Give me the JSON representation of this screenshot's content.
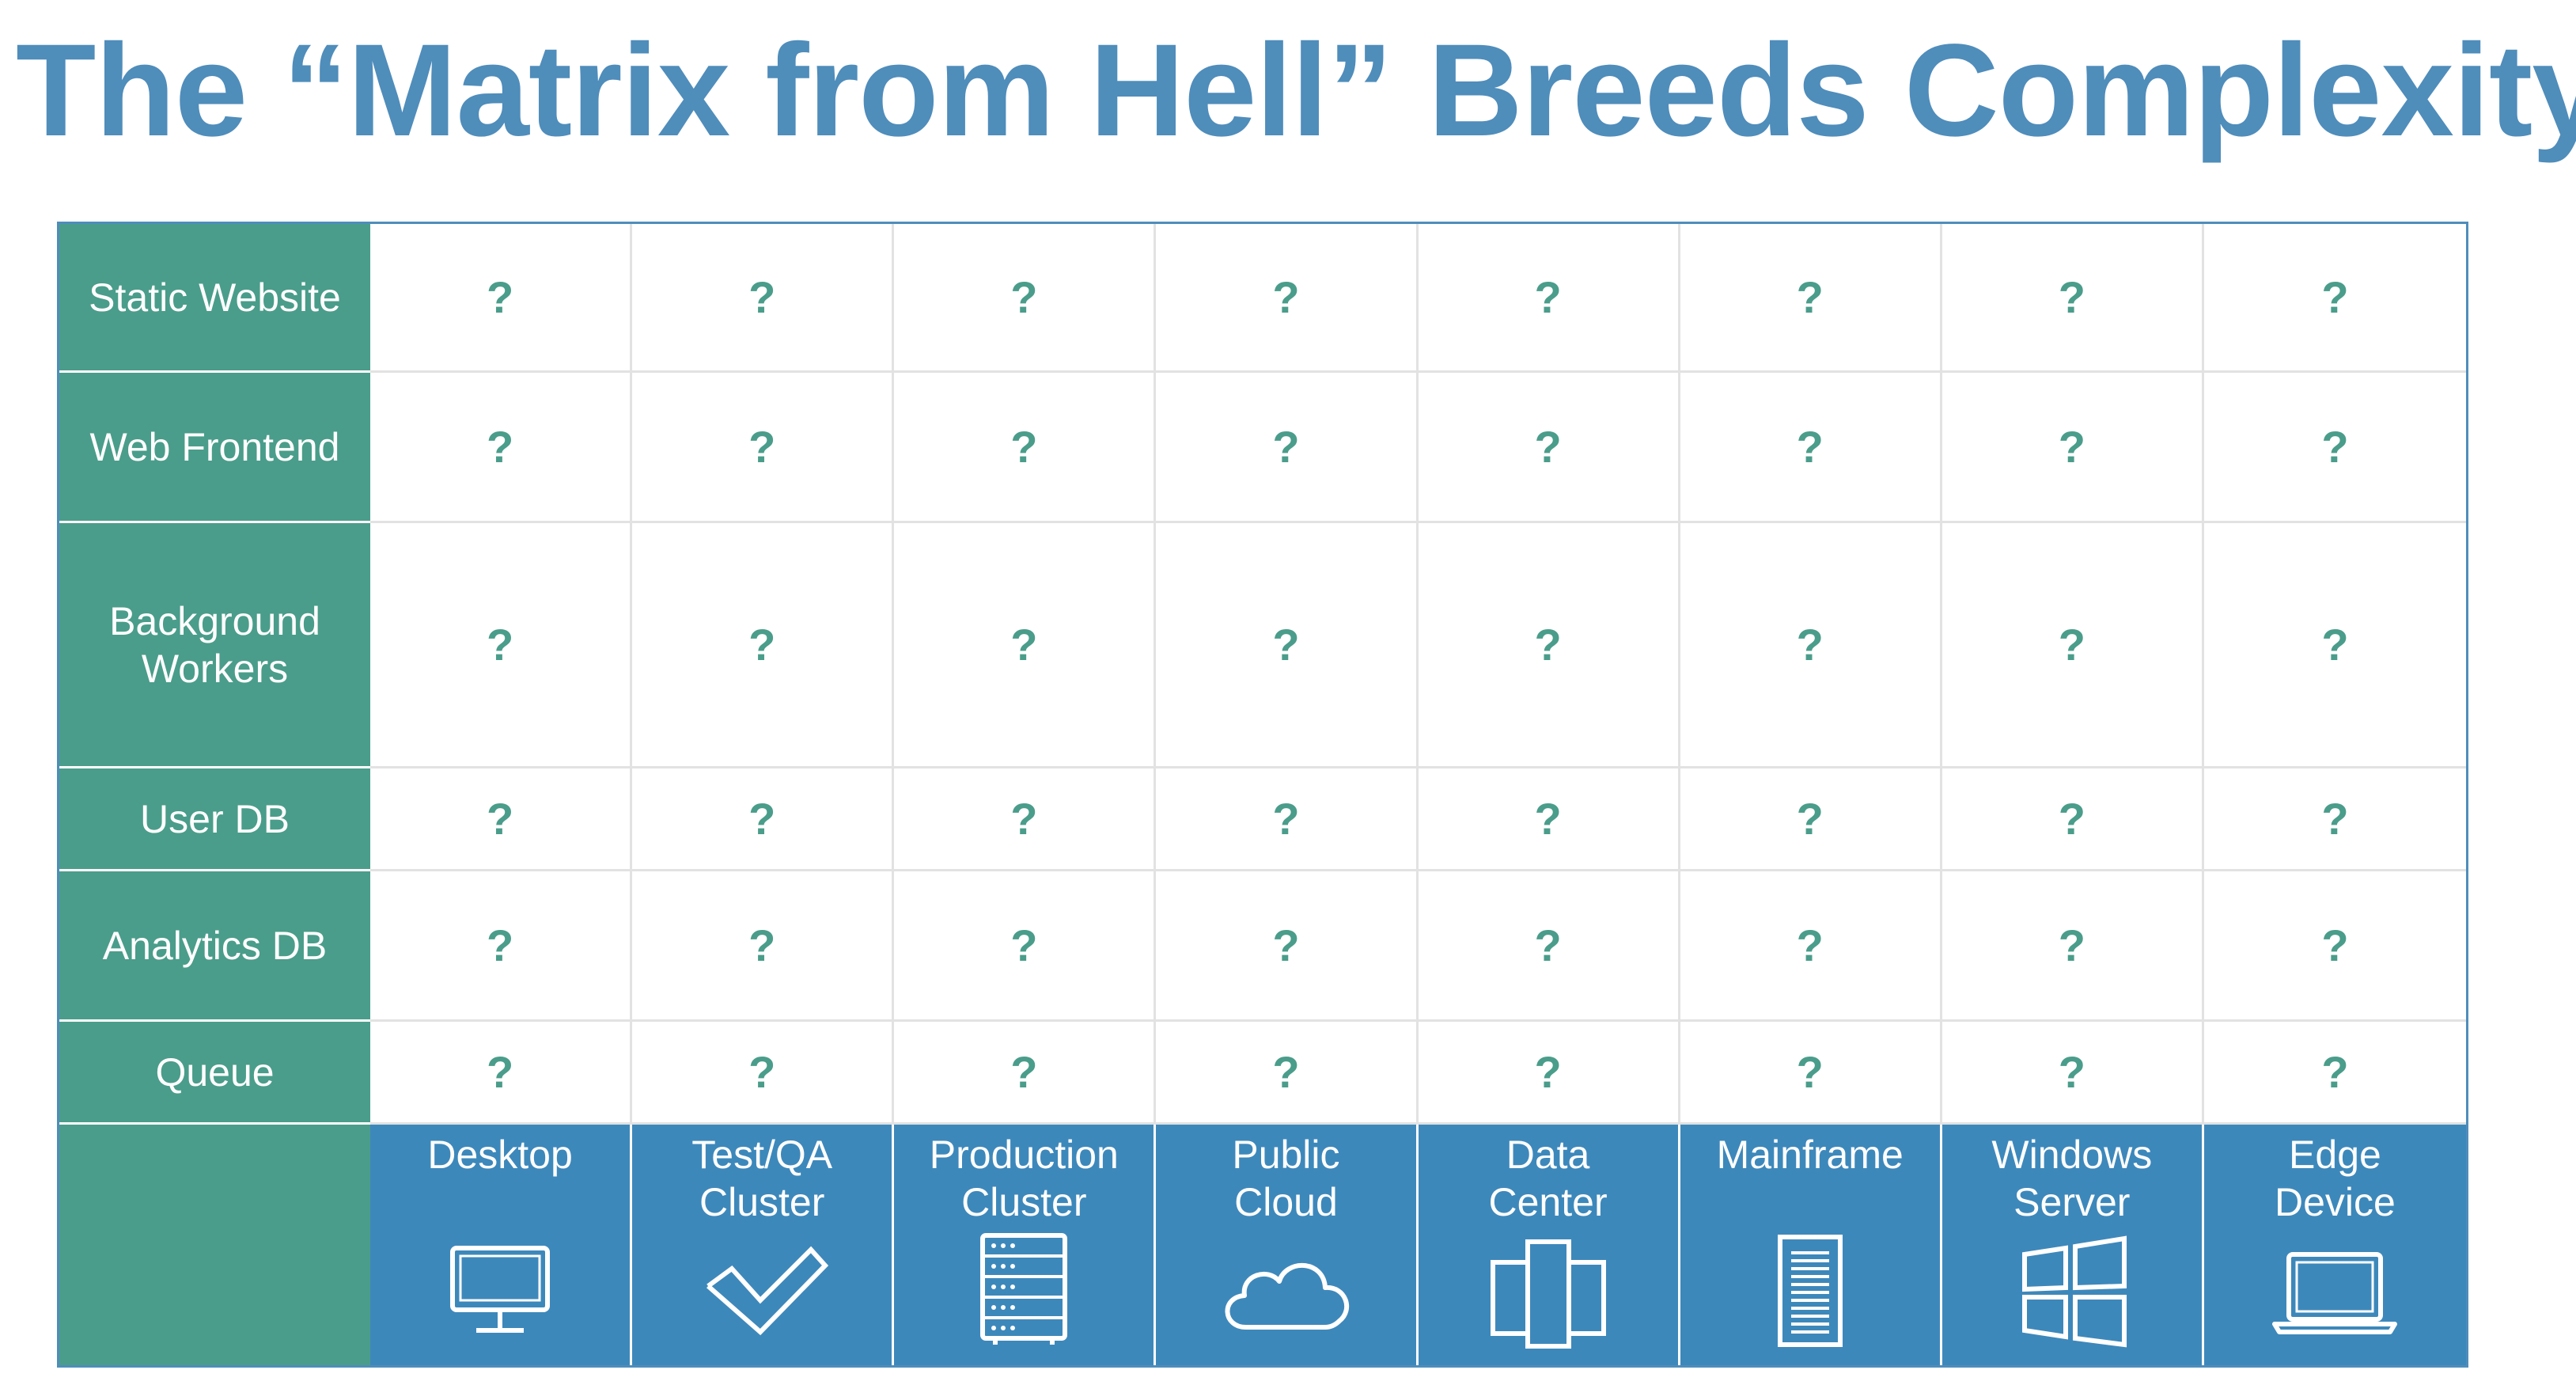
{
  "title": "The “Matrix from Hell” Breeds Complexity",
  "cell_mark": "?",
  "rows": [
    {
      "label": "Static Website"
    },
    {
      "label": "Web Frontend"
    },
    {
      "label": "Background Workers"
    },
    {
      "label": "User DB"
    },
    {
      "label": "Analytics DB"
    },
    {
      "label": "Queue"
    }
  ],
  "environments": [
    {
      "label": "Desktop",
      "icon": "desktop-icon"
    },
    {
      "label": "Test/QA\nCluster",
      "icon": "checkmark-icon"
    },
    {
      "label": "Production\nCluster",
      "icon": "server-rack-icon"
    },
    {
      "label": "Public\nCloud",
      "icon": "cloud-icon"
    },
    {
      "label": "Data\nCenter",
      "icon": "data-center-icon"
    },
    {
      "label": "Mainframe",
      "icon": "mainframe-icon"
    },
    {
      "label": "Windows\nServer",
      "icon": "windows-logo-icon"
    },
    {
      "label": "Edge\nDevice",
      "icon": "laptop-icon"
    }
  ],
  "colors": {
    "title": "#4f8dbb",
    "row_header_bg": "#4a9d8a",
    "env_header_bg": "#3d88bb",
    "question_mark": "#4a9d8a",
    "grid_line": "#e2e2e2",
    "border": "#4f8dbb"
  }
}
